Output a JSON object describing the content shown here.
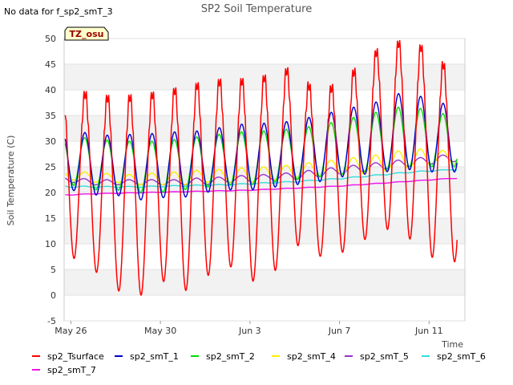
{
  "chart_data": {
    "type": "line",
    "title": "SP2 Soil Temperature",
    "no_data_note": "No data for f_sp2_smT_3",
    "badge": "TZ_osu",
    "xlabel": "Time",
    "ylabel": "Soil Temperature (C)",
    "xlim_days": [
      -0.3,
      17.6
    ],
    "ylim": [
      -5,
      50
    ],
    "y_ticks": [
      -5,
      0,
      5,
      10,
      15,
      20,
      25,
      30,
      35,
      40,
      45,
      50
    ],
    "x_ticks": [
      {
        "day": 0,
        "label": "May 26"
      },
      {
        "day": 4,
        "label": "May 30"
      },
      {
        "day": 8,
        "label": "Jun 3"
      },
      {
        "day": 12,
        "label": "Jun 7"
      },
      {
        "day": 16,
        "label": "Jun 11"
      }
    ],
    "series": [
      {
        "name": "sp2_Tsurface",
        "color": "#ff0000",
        "daily_max": [
          40,
          39,
          38.5,
          39,
          39.5,
          40.5,
          41.5,
          42,
          42,
          43,
          44.5,
          39,
          41.5,
          45,
          49,
          49.5,
          48,
          43.5
        ],
        "daily_min": [
          7.5,
          5,
          1,
          -0.5,
          3,
          0.5,
          3.5,
          6,
          2.5,
          4,
          10,
          7.5,
          8,
          10.5,
          13,
          11.5,
          7.5,
          6.5
        ]
      },
      {
        "name": "sp2_smT_1",
        "color": "#0000cc",
        "daily_max": [
          32,
          31.5,
          31,
          31.5,
          31.5,
          32,
          32,
          33,
          33.5,
          33.5,
          34,
          35,
          36,
          37,
          38,
          40,
          38,
          37
        ],
        "daily_min": [
          20.5,
          19.5,
          19.5,
          18.5,
          19,
          19,
          20,
          20.5,
          20.5,
          21,
          21.5,
          22,
          23,
          23.5,
          24,
          24.5,
          24,
          24
        ]
      },
      {
        "name": "sp2_smT_2",
        "color": "#00dd00",
        "daily_max": [
          31,
          30.5,
          30,
          30,
          30,
          30.5,
          31,
          31.5,
          32,
          32,
          32.5,
          33,
          34,
          35,
          36,
          37,
          36,
          35
        ],
        "daily_min": [
          21.5,
          20.5,
          20.5,
          20,
          20,
          20.5,
          21,
          21.5,
          21.5,
          22,
          22.5,
          23,
          23.5,
          24,
          24.5,
          25,
          25,
          25
        ]
      },
      {
        "name": "sp2_smT_4",
        "color": "#ffee00",
        "daily_max": [
          24,
          24,
          23.5,
          23.5,
          24,
          24,
          24.5,
          24.5,
          25,
          25,
          25.5,
          26,
          26.5,
          27,
          27.5,
          28.5,
          28.5,
          28
        ],
        "daily_min": [
          22.5,
          22,
          22,
          21.5,
          21.5,
          21.5,
          22,
          22,
          22,
          22.5,
          22.5,
          23,
          23.5,
          23.5,
          24,
          24.5,
          25,
          25.5
        ]
      },
      {
        "name": "sp2_smT_5",
        "color": "#9933cc",
        "daily_max": [
          23,
          22.5,
          22.5,
          22.5,
          22.5,
          22.5,
          23,
          23,
          23.5,
          23.5,
          24,
          24.5,
          25,
          25.5,
          26,
          26.5,
          27,
          27.5
        ],
        "daily_min": [
          22,
          21.5,
          21.5,
          21.5,
          21.5,
          21.5,
          21.5,
          22,
          22,
          22.5,
          22.5,
          23,
          23.5,
          24,
          24.5,
          25,
          25.5,
          26
        ]
      },
      {
        "name": "sp2_smT_6",
        "color": "#33dddd",
        "daily_max": [
          21.3,
          21.2,
          21.2,
          21.2,
          21.3,
          21.4,
          21.5,
          21.6,
          21.8,
          22,
          22.2,
          22.5,
          22.8,
          23.2,
          23.6,
          24,
          24.3,
          24.5
        ],
        "daily_min": [
          21,
          21,
          21,
          21,
          21.1,
          21.2,
          21.3,
          21.4,
          21.6,
          21.8,
          22,
          22.3,
          22.6,
          23,
          23.4,
          23.8,
          24.1,
          24.4
        ]
      },
      {
        "name": "sp2_smT_7",
        "color": "#ee11ee",
        "daily_max": [
          19.6,
          19.8,
          19.9,
          20,
          20.1,
          20.2,
          20.3,
          20.4,
          20.5,
          20.7,
          20.9,
          21.1,
          21.3,
          21.6,
          21.9,
          22.2,
          22.5,
          22.8
        ],
        "daily_min": [
          19.5,
          19.7,
          19.8,
          19.9,
          20,
          20.1,
          20.2,
          20.3,
          20.4,
          20.6,
          20.8,
          21,
          21.2,
          21.5,
          21.8,
          22.1,
          22.4,
          22.7
        ]
      }
    ]
  }
}
